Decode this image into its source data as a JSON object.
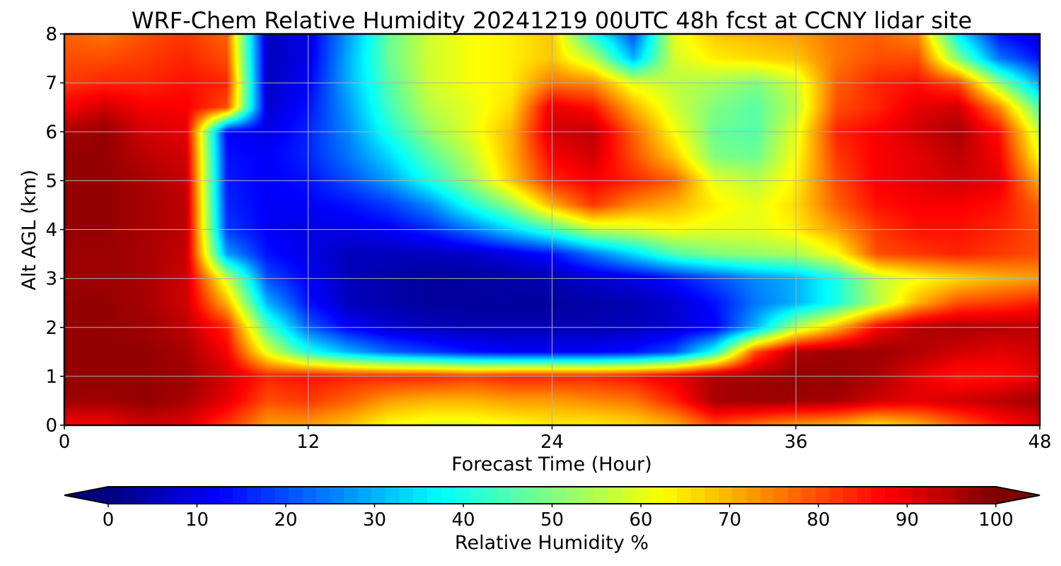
{
  "chart_data": {
    "type": "heatmap",
    "title": "WRF-Chem Relative Humidity 20241219 00UTC 48h fcst at CCNY lidar site",
    "xlabel": "Forecast Time (Hour)",
    "ylabel": "Alt AGL (km)",
    "xlim": [
      0,
      48
    ],
    "ylim": [
      0,
      8
    ],
    "x_ticks": [
      0,
      12,
      24,
      36,
      48
    ],
    "y_ticks": [
      0,
      1,
      2,
      3,
      4,
      5,
      6,
      7,
      8
    ],
    "grid": true,
    "colorbar": {
      "label": "Relative Humidity %",
      "colormap": "jet",
      "range": [
        0,
        100
      ],
      "ticks": [
        0,
        10,
        20,
        30,
        40,
        50,
        60,
        70,
        80,
        90,
        100
      ],
      "extend": "both",
      "orientation": "horizontal",
      "placement": "bottom"
    },
    "x": [
      0,
      2,
      4,
      6,
      8,
      10,
      12,
      14,
      16,
      18,
      20,
      22,
      24,
      26,
      28,
      30,
      32,
      34,
      36,
      38,
      40,
      42,
      44,
      46,
      48
    ],
    "y": [
      0,
      0.5,
      1,
      1.5,
      2,
      2.5,
      3,
      3.5,
      4,
      4.5,
      5,
      5.5,
      6,
      6.5,
      7,
      7.5,
      8
    ],
    "z": [
      [
        88,
        88,
        92,
        90,
        82,
        72,
        72,
        68,
        62,
        60,
        60,
        62,
        64,
        64,
        66,
        70,
        80,
        76,
        72,
        70,
        65,
        70,
        78,
        85,
        90
      ],
      [
        97,
        97,
        98,
        96,
        90,
        80,
        82,
        78,
        72,
        70,
        70,
        72,
        72,
        74,
        76,
        84,
        96,
        97,
        97,
        96,
        92,
        90,
        92,
        94,
        97
      ],
      [
        98,
        98,
        98,
        97,
        92,
        84,
        86,
        84,
        84,
        84,
        82,
        84,
        84,
        84,
        86,
        90,
        96,
        97,
        98,
        98,
        96,
        90,
        85,
        86,
        90
      ],
      [
        98,
        98,
        98,
        96,
        88,
        60,
        40,
        30,
        22,
        18,
        14,
        12,
        12,
        12,
        14,
        20,
        40,
        80,
        95,
        97,
        97,
        95,
        92,
        90,
        92
      ],
      [
        98,
        98,
        97,
        94,
        84,
        45,
        22,
        12,
        8,
        6,
        5,
        5,
        5,
        5,
        6,
        8,
        12,
        30,
        55,
        70,
        88,
        95,
        96,
        95,
        94
      ],
      [
        98,
        98,
        96,
        92,
        70,
        30,
        14,
        6,
        4,
        3,
        3,
        3,
        3,
        4,
        5,
        8,
        14,
        24,
        30,
        40,
        55,
        70,
        80,
        82,
        85
      ],
      [
        97,
        97,
        96,
        92,
        58,
        20,
        12,
        6,
        4,
        3,
        3,
        4,
        5,
        8,
        10,
        14,
        20,
        26,
        30,
        40,
        56,
        62,
        66,
        70,
        72
      ],
      [
        97,
        97,
        96,
        93,
        28,
        14,
        10,
        6,
        6,
        6,
        7,
        10,
        14,
        24,
        34,
        45,
        50,
        52,
        54,
        62,
        80,
        82,
        84,
        82,
        80
      ],
      [
        98,
        98,
        96,
        94,
        18,
        12,
        10,
        10,
        12,
        16,
        24,
        34,
        44,
        56,
        58,
        62,
        60,
        60,
        64,
        72,
        82,
        86,
        86,
        84,
        80
      ],
      [
        98,
        98,
        96,
        94,
        16,
        12,
        12,
        14,
        18,
        26,
        40,
        52,
        70,
        82,
        74,
        70,
        64,
        60,
        66,
        78,
        86,
        88,
        88,
        86,
        78
      ],
      [
        98,
        98,
        96,
        93,
        15,
        12,
        14,
        20,
        28,
        40,
        52,
        68,
        84,
        88,
        84,
        78,
        60,
        56,
        64,
        80,
        88,
        90,
        92,
        90,
        70
      ],
      [
        98,
        98,
        94,
        92,
        14,
        12,
        16,
        24,
        34,
        46,
        56,
        70,
        88,
        92,
        80,
        68,
        50,
        48,
        62,
        82,
        88,
        90,
        94,
        88,
        62
      ],
      [
        96,
        98,
        92,
        90,
        12,
        10,
        16,
        26,
        40,
        52,
        60,
        70,
        92,
        94,
        78,
        62,
        48,
        46,
        60,
        84,
        88,
        92,
        96,
        86,
        56
      ],
      [
        88,
        92,
        88,
        88,
        80,
        8,
        14,
        28,
        44,
        56,
        60,
        66,
        90,
        86,
        70,
        58,
        50,
        46,
        56,
        80,
        84,
        90,
        92,
        74,
        45
      ],
      [
        82,
        84,
        84,
        86,
        84,
        6,
        12,
        30,
        46,
        58,
        62,
        64,
        76,
        74,
        60,
        56,
        54,
        50,
        58,
        78,
        84,
        86,
        80,
        52,
        28
      ],
      [
        80,
        80,
        82,
        84,
        80,
        6,
        10,
        30,
        48,
        58,
        62,
        64,
        68,
        56,
        30,
        58,
        64,
        66,
        68,
        76,
        80,
        80,
        50,
        24,
        14
      ],
      [
        78,
        76,
        80,
        82,
        78,
        6,
        10,
        28,
        48,
        58,
        62,
        64,
        68,
        40,
        20,
        60,
        68,
        70,
        72,
        76,
        78,
        74,
        36,
        14,
        8
      ]
    ]
  }
}
